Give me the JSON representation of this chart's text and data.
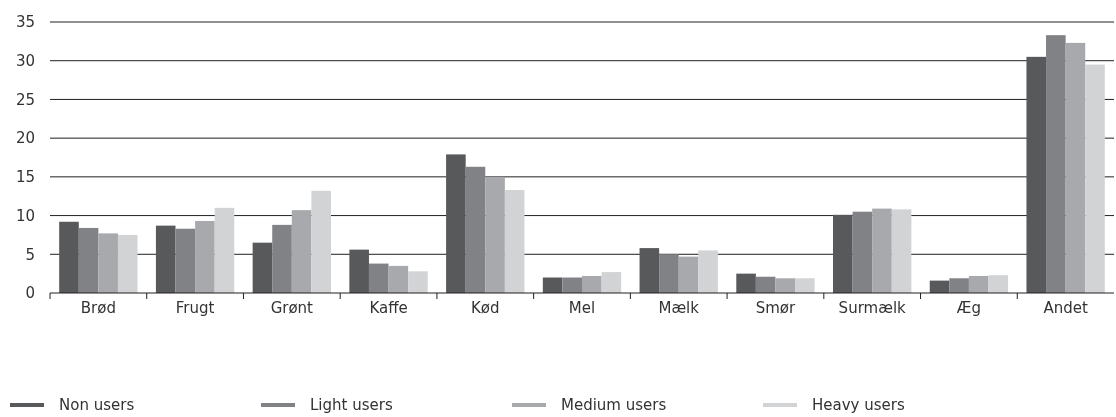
{
  "chart_data": {
    "type": "bar",
    "categories": [
      "Brød",
      "Frugt",
      "Grønt",
      "Kaffe",
      "Kød",
      "Mel",
      "Mælk",
      "Smør",
      "Surmælk",
      "Æg",
      "Andet"
    ],
    "series": [
      {
        "name": "Non users",
        "color": "#58595b",
        "values": [
          9.2,
          8.7,
          6.5,
          5.6,
          17.9,
          2.0,
          5.8,
          2.5,
          10.1,
          1.6,
          30.5
        ]
      },
      {
        "name": "Light users",
        "color": "#808285",
        "values": [
          8.4,
          8.3,
          8.8,
          3.8,
          16.3,
          2.0,
          5.0,
          2.1,
          10.5,
          1.9,
          33.3
        ]
      },
      {
        "name": "Medium users",
        "color": "#a7a9ac",
        "values": [
          7.7,
          9.3,
          10.7,
          3.5,
          15.0,
          2.2,
          4.7,
          1.9,
          10.9,
          2.2,
          32.3
        ]
      },
      {
        "name": "Heavy users",
        "color": "#d1d3d4",
        "values": [
          7.5,
          11.0,
          13.2,
          2.8,
          13.3,
          2.7,
          5.5,
          1.9,
          10.8,
          2.3,
          29.5
        ]
      }
    ],
    "ylim": [
      0,
      35
    ],
    "yticks": [
      0,
      5,
      10,
      15,
      20,
      25,
      30,
      35
    ],
    "grid": "y",
    "legend": "bottom"
  }
}
